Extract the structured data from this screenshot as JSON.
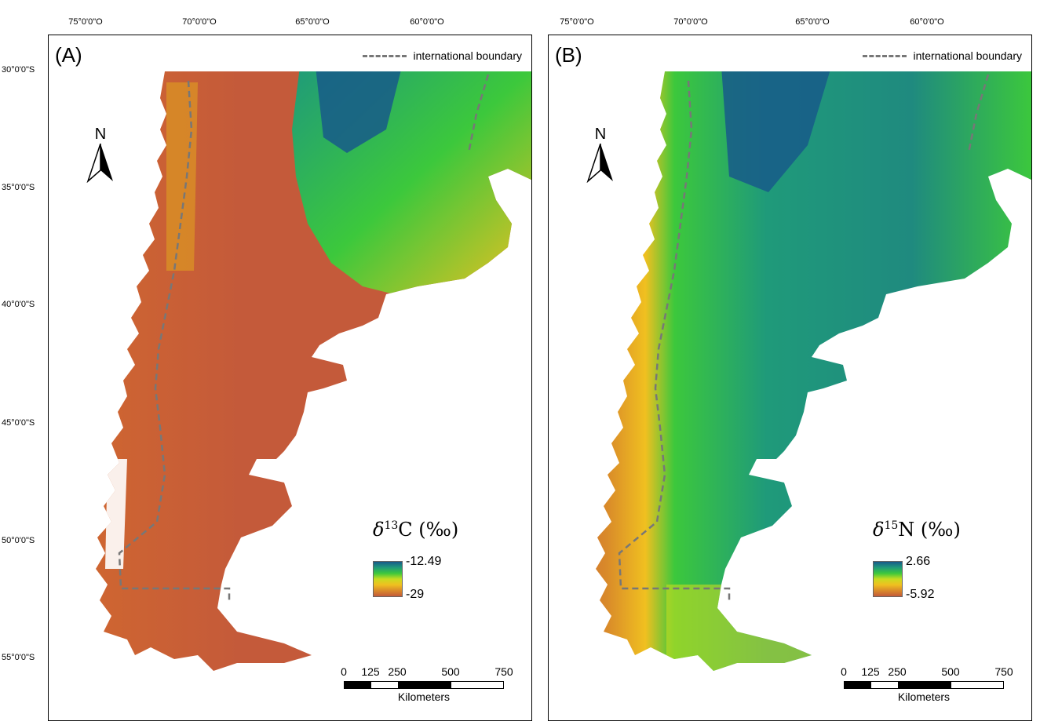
{
  "panels": [
    {
      "label": "(A)",
      "legend_line": "international boundary",
      "north": "N",
      "icon": "north-arrow-icon",
      "legend": {
        "delta": "δ",
        "isotope_mass": "13",
        "element": "C",
        "unit": "(‰)",
        "max": "-12.49",
        "min": "-29"
      },
      "palette": [
        "#c45a3a",
        "#d98a2a",
        "#f0c020",
        "#c8dc20",
        "#3cc83c",
        "#1f9a7a",
        "#175a8a"
      ]
    },
    {
      "label": "(B)",
      "legend_line": "international boundary",
      "north": "N",
      "icon": "north-arrow-icon",
      "legend": {
        "delta": "δ",
        "isotope_mass": "15",
        "element": "N",
        "unit": "(‰)",
        "max": "2.66",
        "min": "-5.92"
      },
      "palette": [
        "#c45a3a",
        "#d98a2a",
        "#f0c020",
        "#c8dc20",
        "#3cc83c",
        "#1f9a7a",
        "#175a8a"
      ]
    }
  ],
  "lon_labels": [
    "75°0'0\"O",
    "70°0'0\"O",
    "65°0'0\"O",
    "60°0'0\"O"
  ],
  "lat_labels": [
    "30°0'0\"S",
    "35°0'0\"S",
    "40°0'0\"S",
    "45°0'0\"S",
    "50°0'0\"S",
    "55°0'0\"S"
  ],
  "scale": {
    "ticks": [
      "0",
      "125",
      "250",
      "500",
      "750"
    ],
    "unit": "Kilometers"
  },
  "colors": {
    "boundary": "#777777",
    "land_base": "#c45a3a",
    "ocean": "#ffffff"
  }
}
